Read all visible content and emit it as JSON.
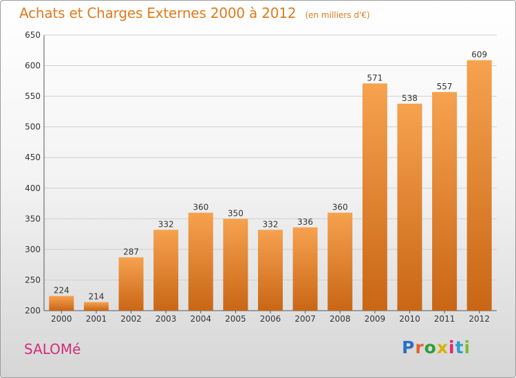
{
  "header": {
    "title": "Achats et Charges Externes 2000 à 2012",
    "unit": "(en milliers d'€)"
  },
  "commune": "SALOMé",
  "logo": {
    "text": "Proxiti",
    "colors": [
      "#2b6fc4",
      "#e8622a",
      "#2f9e3d",
      "#d8b200",
      "#e02a6a",
      "#2b9ed8",
      "#7bbf2e"
    ]
  },
  "colors": {
    "accent": "#e07a1c",
    "bar_light": "#f6a24f",
    "bar_dark": "#c96615",
    "commune": "#d02d7a"
  },
  "chart_data": {
    "type": "bar",
    "categories": [
      "2000",
      "2001",
      "2002",
      "2003",
      "2004",
      "2005",
      "2006",
      "2007",
      "2008",
      "2009",
      "2010",
      "2011",
      "2012"
    ],
    "values": [
      224,
      214,
      287,
      332,
      360,
      350,
      332,
      336,
      360,
      571,
      538,
      557,
      609
    ],
    "ylim": [
      200,
      650
    ],
    "yticks": [
      200,
      250,
      300,
      350,
      400,
      450,
      500,
      550,
      600,
      650
    ],
    "title": "Achats et Charges Externes 2000 à 2012",
    "xlabel": "",
    "ylabel": "",
    "grid": true
  }
}
